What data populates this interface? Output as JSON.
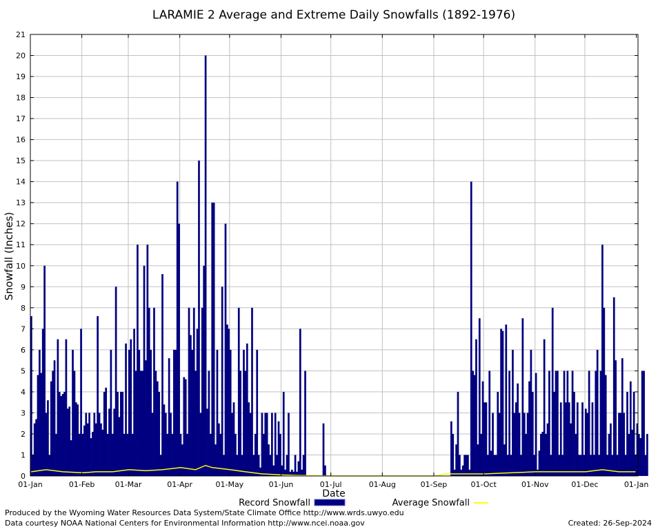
{
  "chart_data": {
    "type": "bar",
    "title": "LARAMIE 2 Average and Extreme Daily Snowfalls (1892-1976)",
    "xlabel": "Date",
    "ylabel": "Snowfall (Inches)",
    "x_ticks": [
      "01-Jan",
      "01-Feb",
      "01-Mar",
      "01-Apr",
      "01-May",
      "01-Jun",
      "01-Jul",
      "01-Aug",
      "01-Sep",
      "01-Oct",
      "01-Nov",
      "01-Dec",
      "01-Jan"
    ],
    "y_ticks": [
      "0",
      "1",
      "2",
      "3",
      "4",
      "5",
      "6",
      "7",
      "8",
      "9",
      "10",
      "11",
      "12",
      "13",
      "14",
      "15",
      "16",
      "17",
      "18",
      "19",
      "20",
      "21"
    ],
    "ylim": [
      0,
      21
    ],
    "grid": true,
    "legend_position": "bottom",
    "series": [
      {
        "name": "Record Snowfall",
        "kind": "bar",
        "color": "#000080",
        "values": [
          7.6,
          1.0,
          2.5,
          2.7,
          4.8,
          6.0,
          4.9,
          7.0,
          10.0,
          3.0,
          3.6,
          1.0,
          4.5,
          5.0,
          5.5,
          2.0,
          6.5,
          4.0,
          3.8,
          3.9,
          4.0,
          6.5,
          3.2,
          3.3,
          1.7,
          6.0,
          5.0,
          3.5,
          3.4,
          2.0,
          7.0,
          2.0,
          2.4,
          3.0,
          2.5,
          3.0,
          1.8,
          2.1,
          3.0,
          2.5,
          7.6,
          3.0,
          2.5,
          2.2,
          4.0,
          4.2,
          2.0,
          3.2,
          6.0,
          2.0,
          3.2,
          9.0,
          4.0,
          2.8,
          4.0,
          4.0,
          2.0,
          6.3,
          2.0,
          6.0,
          6.5,
          2.0,
          7.0,
          5.0,
          11.0,
          6.0,
          5.0,
          5.0,
          10.0,
          5.5,
          11.0,
          8.0,
          6.0,
          3.0,
          8.0,
          5.0,
          4.5,
          4.0,
          1.0,
          9.6,
          3.4,
          3.0,
          2.0,
          5.6,
          3.0,
          2.0,
          6.0,
          6.0,
          14.0,
          12.0,
          2.0,
          1.5,
          4.7,
          4.6,
          2.0,
          8.0,
          6.7,
          6.0,
          8.0,
          5.0,
          7.0,
          15.0,
          3.0,
          8.0,
          10.0,
          20.0,
          3.2,
          5.0,
          2.0,
          13.0,
          13.0,
          1.5,
          6.0,
          2.5,
          2.0,
          9.0,
          1.0,
          12.0,
          7.2,
          7.0,
          6.0,
          3.0,
          3.5,
          2.0,
          1.0,
          8.0,
          5.0,
          1.0,
          6.0,
          5.0,
          6.3,
          3.5,
          3.0,
          8.0,
          1.0,
          2.0,
          6.0,
          1.0,
          0.4,
          3.0,
          2.0,
          3.0,
          3.0,
          1.5,
          1.0,
          3.0,
          0.5,
          3.0,
          1.0,
          2.6,
          2.0,
          0.5,
          4.0,
          0.3,
          1.0,
          3.0,
          0.2,
          0.3,
          0.2,
          1.0,
          0.2,
          0.7,
          7.0,
          0.3,
          1.0,
          5.0,
          0,
          0,
          0,
          0,
          0,
          0,
          0,
          0,
          0,
          0,
          2.5,
          0.5,
          0,
          0,
          0,
          0,
          0,
          0,
          0,
          0,
          0,
          0,
          0,
          0,
          0,
          0,
          0,
          0,
          0,
          0,
          0,
          0,
          0,
          0,
          0,
          0,
          0,
          0,
          0,
          0,
          0,
          0,
          0,
          0,
          0,
          0,
          0,
          0,
          0,
          0,
          0,
          0,
          0,
          0,
          0,
          0,
          0,
          0,
          0,
          0,
          0,
          0,
          0,
          0,
          0,
          0,
          0,
          0,
          0,
          0,
          0,
          0,
          0,
          0,
          0,
          0,
          0,
          0,
          0,
          0,
          0,
          0,
          0,
          0,
          0,
          0,
          0,
          2.6,
          2.0,
          0.3,
          1.5,
          4.0,
          1.0,
          0.3,
          0.5,
          1.0,
          1.0,
          1.0,
          0.3,
          14.0,
          5.0,
          4.8,
          6.5,
          1.5,
          7.5,
          2.0,
          4.5,
          3.5,
          3.5,
          1.0,
          5.0,
          1.2,
          3.0,
          1.0,
          1.0,
          4.0,
          3.0,
          7.0,
          6.9,
          1.5,
          7.2,
          1.0,
          5.0,
          1.0,
          6.0,
          3.0,
          3.5,
          4.4,
          3.0,
          1.0,
          7.5,
          3.0,
          2.0,
          3.0,
          4.5,
          6.0,
          4.0,
          1.0,
          4.9,
          0.3,
          1.2,
          2.0,
          2.1,
          6.5,
          2.0,
          2.5,
          5.0,
          1.0,
          8.0,
          4.0,
          5.0,
          5.0,
          1.0,
          3.5,
          1.0,
          5.0,
          3.5,
          5.0,
          3.5,
          2.5,
          5.0,
          4.0,
          2.0,
          3.5,
          1.0,
          1.0,
          3.5,
          1.0,
          3.2,
          3.0,
          5.0,
          1.0,
          3.5,
          1.0,
          5.0,
          6.0,
          1.0,
          5.0,
          11.0,
          8.0,
          4.8,
          1.0,
          2.0,
          2.5,
          1.0,
          8.5,
          5.5,
          1.0,
          3.0,
          3.0,
          5.6,
          3.0,
          1.0,
          4.0,
          2.0,
          4.5,
          2.2,
          4.0,
          1.0,
          2.5,
          2.0,
          1.8,
          5.0,
          5.0,
          1.0,
          2.0
        ]
      },
      {
        "name": "Average Snowfall",
        "kind": "line",
        "color": "#ffff00",
        "x_days": [
          1,
          10,
          20,
          32,
          40,
          50,
          60,
          70,
          80,
          91,
          100,
          106,
          110,
          121,
          130,
          140,
          152,
          160,
          182,
          245,
          250,
          260,
          274,
          290,
          305,
          320,
          335,
          345,
          355,
          365
        ],
        "values": [
          0.2,
          0.3,
          0.2,
          0.15,
          0.2,
          0.2,
          0.3,
          0.25,
          0.3,
          0.4,
          0.3,
          0.5,
          0.4,
          0.3,
          0.2,
          0.1,
          0.05,
          0.03,
          0,
          0,
          0.1,
          0.1,
          0.1,
          0.15,
          0.2,
          0.2,
          0.2,
          0.3,
          0.2,
          0.2
        ]
      }
    ]
  },
  "footer": {
    "produced": "Produced by the Wyoming Water Resources Data System/State Climate Office http://www.wrds.uwyo.edu",
    "data_source": "Data courtesy NOAA National Centers for Environmental Information http://www.ncei.noaa.gov",
    "created": "Created:  26-Sep-2024"
  }
}
